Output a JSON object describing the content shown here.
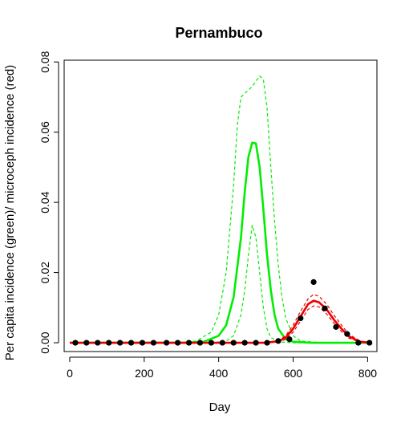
{
  "chart_data": {
    "type": "line",
    "title": "Pernambuco",
    "xlabel": "Day",
    "ylabel": "Per capita incidence (green)/ microceph incidence (red)",
    "xlim": [
      -15,
      825
    ],
    "ylim": [
      -0.0025,
      0.0805
    ],
    "xticks": [
      0,
      200,
      400,
      600,
      800
    ],
    "yticks": [
      0.0,
      0.02,
      0.04,
      0.06,
      0.08
    ],
    "xtick_labels": [
      "0",
      "200",
      "400",
      "600",
      "800"
    ],
    "ytick_labels": [
      "0.00",
      "0.02",
      "0.04",
      "0.06",
      "0.08"
    ],
    "grid": false,
    "series": [
      {
        "color": "#00ee00",
        "style": "solid",
        "x": [
          0,
          300,
          360,
          400,
          420,
          440,
          460,
          470,
          480,
          490,
          500,
          510,
          520,
          530,
          540,
          550,
          560,
          580,
          600,
          650,
          810
        ],
        "y": [
          0,
          0,
          0.0003,
          0.002,
          0.005,
          0.013,
          0.03,
          0.043,
          0.053,
          0.057,
          0.0568,
          0.05,
          0.038,
          0.025,
          0.015,
          0.008,
          0.004,
          0.001,
          0.0003,
          0,
          0
        ]
      },
      {
        "color": "#00ee00",
        "style": "dashed",
        "x": [
          0,
          300,
          340,
          380,
          400,
          420,
          440,
          450,
          460,
          470,
          480,
          490,
          500,
          510,
          520,
          530,
          540,
          550,
          560,
          570,
          580,
          600,
          620,
          680,
          810
        ],
        "y": [
          0,
          0,
          0.0005,
          0.003,
          0.008,
          0.02,
          0.045,
          0.062,
          0.07,
          0.071,
          0.072,
          0.073,
          0.0745,
          0.076,
          0.075,
          0.067,
          0.05,
          0.035,
          0.022,
          0.013,
          0.007,
          0.002,
          0.0005,
          0,
          0
        ]
      },
      {
        "color": "#00ee00",
        "style": "dashed",
        "x": [
          0,
          380,
          420,
          440,
          460,
          470,
          480,
          490,
          500,
          510,
          520,
          530,
          540,
          560,
          600,
          810
        ],
        "y": [
          0,
          0,
          0.0005,
          0.002,
          0.008,
          0.015,
          0.025,
          0.0335,
          0.03,
          0.02,
          0.01,
          0.004,
          0.0015,
          0.0003,
          0,
          0
        ]
      },
      {
        "color": "#ee0000",
        "style": "solid",
        "x": [
          0,
          520,
          560,
          580,
          600,
          620,
          640,
          655,
          670,
          690,
          710,
          730,
          750,
          780,
          810
        ],
        "y": [
          0,
          0,
          0.0004,
          0.0015,
          0.004,
          0.0075,
          0.011,
          0.012,
          0.0115,
          0.0095,
          0.0065,
          0.004,
          0.0018,
          0.0003,
          0
        ]
      },
      {
        "color": "#ee0000",
        "style": "dashed",
        "x": [
          0,
          520,
          560,
          580,
          600,
          620,
          640,
          655,
          670,
          690,
          710,
          730,
          750,
          780,
          810
        ],
        "y": [
          0,
          0,
          0.0006,
          0.002,
          0.005,
          0.009,
          0.0125,
          0.0138,
          0.0132,
          0.011,
          0.0078,
          0.005,
          0.0024,
          0.0005,
          0
        ]
      },
      {
        "color": "#ee0000",
        "style": "dashed",
        "x": [
          0,
          520,
          560,
          580,
          600,
          620,
          640,
          655,
          670,
          690,
          710,
          730,
          750,
          780,
          810
        ],
        "y": [
          0,
          0,
          0.0002,
          0.001,
          0.003,
          0.0062,
          0.0095,
          0.0105,
          0.0102,
          0.0082,
          0.0055,
          0.0032,
          0.0013,
          0.0002,
          0
        ]
      }
    ],
    "points": {
      "color": "#000000",
      "x": [
        15,
        45,
        75,
        105,
        135,
        165,
        195,
        225,
        260,
        290,
        320,
        350,
        380,
        410,
        440,
        470,
        500,
        530,
        560,
        590,
        620,
        655,
        685,
        715,
        745,
        775,
        805
      ],
      "y": [
        0,
        0,
        0,
        0,
        0,
        0,
        0,
        0,
        0,
        0,
        0,
        0,
        0,
        0,
        0,
        0,
        0,
        0,
        0.0005,
        0.001,
        0.007,
        0.0173,
        0.0098,
        0.0045,
        0.0025,
        0,
        0
      ]
    }
  }
}
